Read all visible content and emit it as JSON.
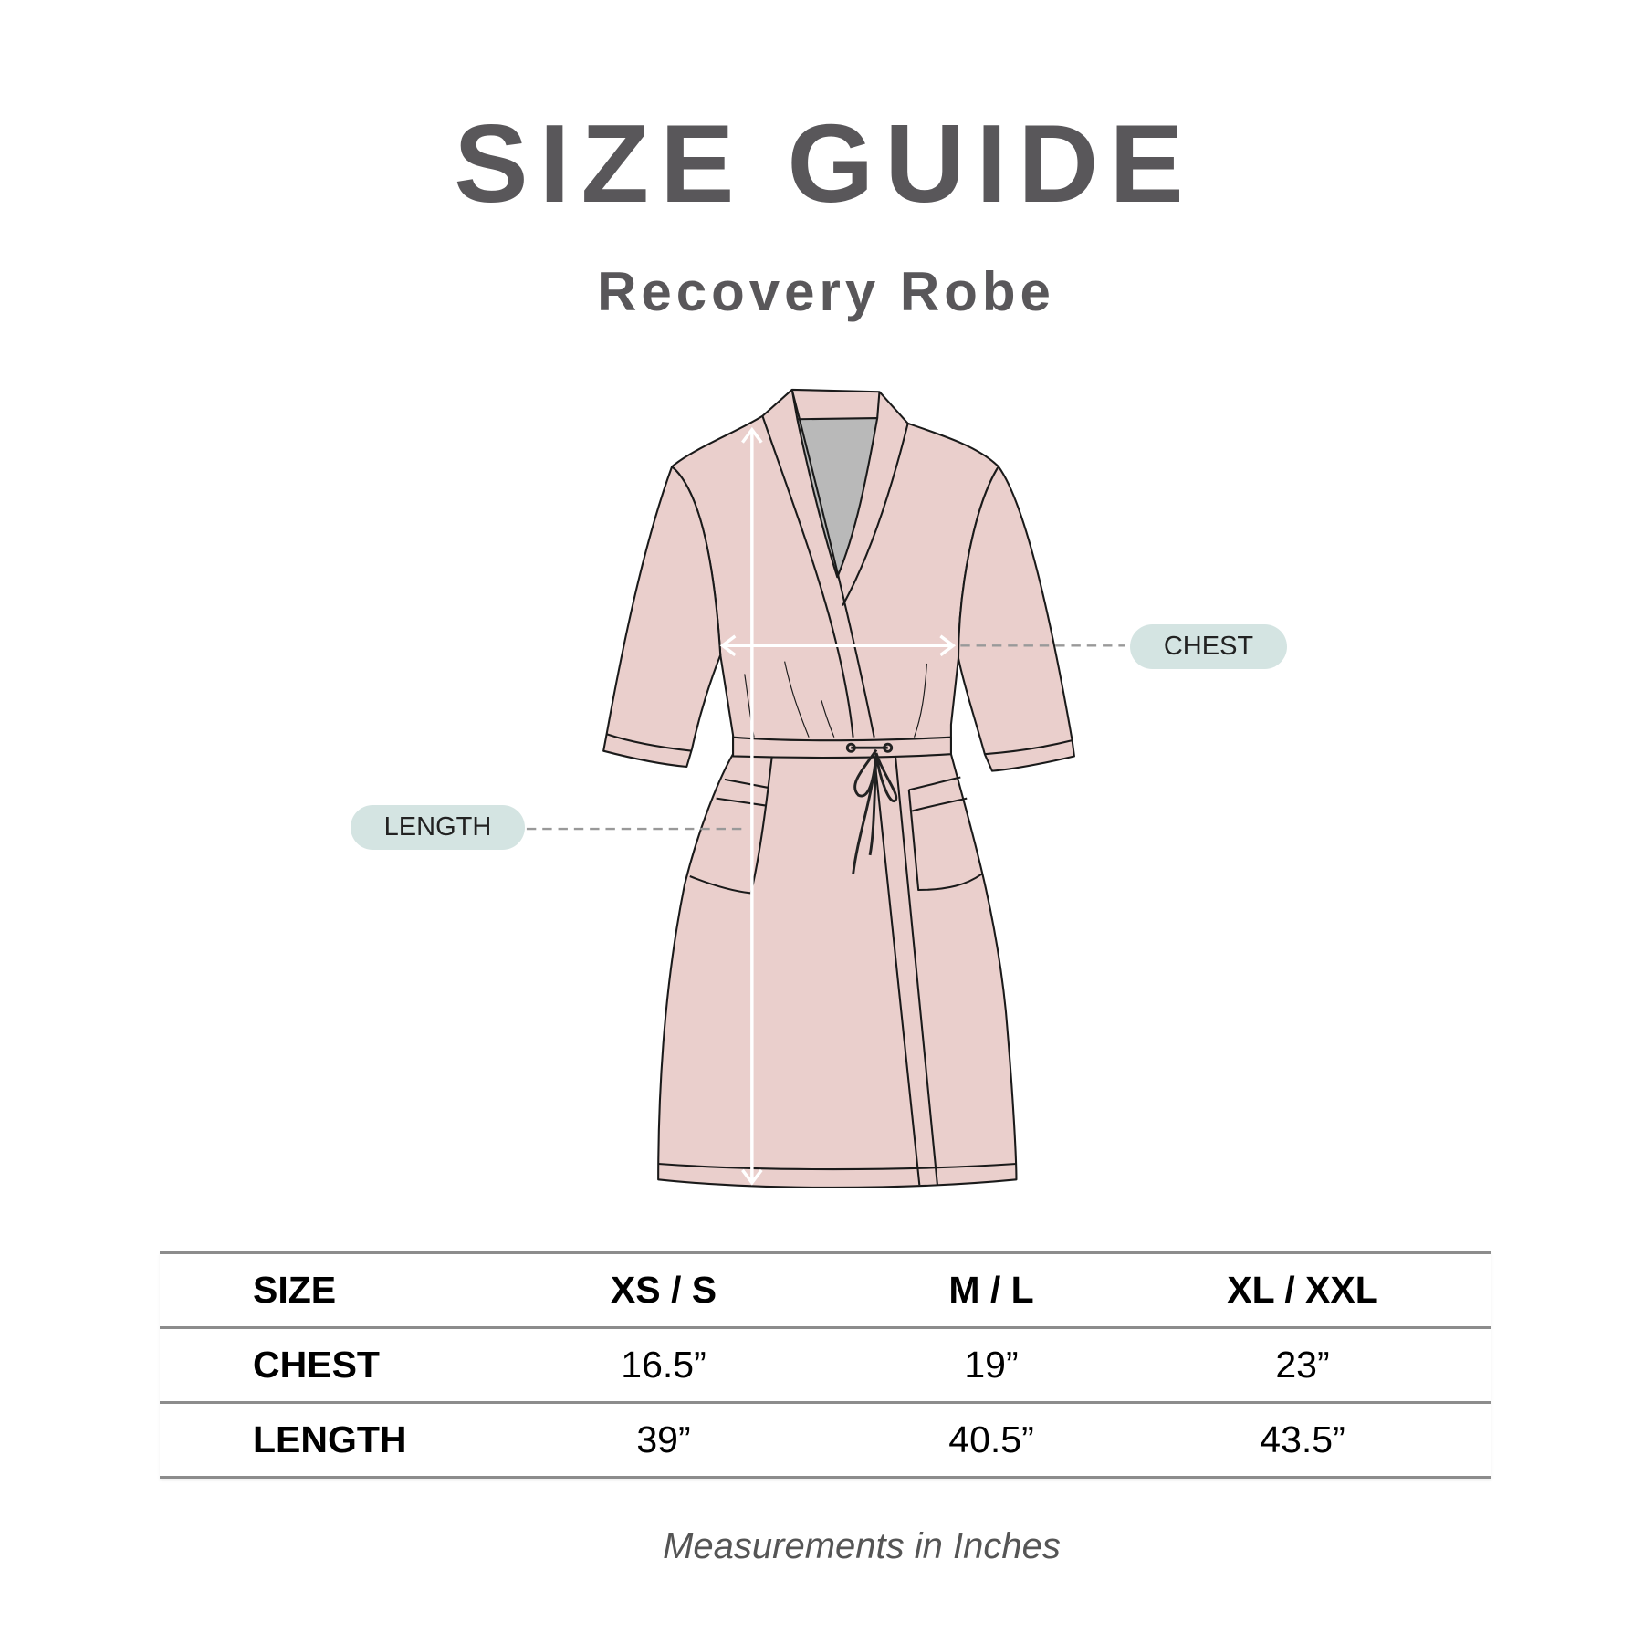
{
  "header": {
    "title": "SIZE GUIDE",
    "subtitle": "Recovery Robe"
  },
  "diagram": {
    "labels": {
      "chest": "CHEST",
      "length": "LENGTH"
    },
    "colors": {
      "robe_fill": "#eacfcc",
      "neck_fill": "#b9b9b9",
      "label_pill": "#d4e4e2",
      "arrow": "#ffffff"
    }
  },
  "table": {
    "columns": [
      "SIZE",
      "XS / S",
      "M / L",
      "XL / XXL"
    ],
    "rows": [
      {
        "label": "CHEST",
        "values": [
          "16.5”",
          "19”",
          "23”"
        ]
      },
      {
        "label": "LENGTH",
        "values": [
          "39”",
          "40.5”",
          "43.5”"
        ]
      }
    ]
  },
  "footer": {
    "note": "Measurements in Inches"
  }
}
